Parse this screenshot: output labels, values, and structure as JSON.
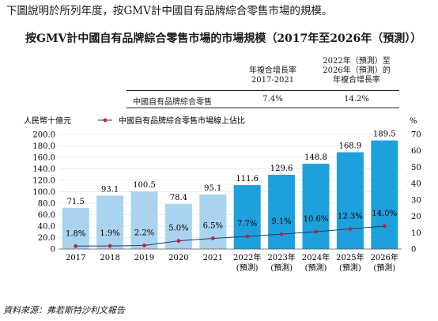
{
  "intro_text": "下圖說明於所列年度，按GMV計中國自有品牌綜合零售市場的規模。",
  "cagr_table": {
    "col1_header": [
      "年複合增長率",
      "2017-2021"
    ],
    "col2_header": [
      "2022年（預測）至",
      "2026年（預測）的",
      "年複合增長率"
    ],
    "row_label": "中國自有品牌綜合零售",
    "col1_value": "7.4%",
    "col2_value": "14.2%"
  },
  "source": "資料來源：弗若斯特沙利文報告",
  "colors": {
    "bar_historical": "#a9d3ef",
    "bar_forecast": "#1ea0dc",
    "line": "#1b3a6b",
    "marker": "#c81e3c"
  },
  "chart_data": {
    "type": "bar",
    "title": "按GMV計中國自有品牌綜合零售市場的市場規模（2017年至2026年（預測））",
    "ylabel": "人民幣十億元",
    "y2label": "%",
    "legend_label": "中國自有品牌綜合零售市場線上佔比",
    "categories": [
      [
        "2017"
      ],
      [
        "2018"
      ],
      [
        "2019"
      ],
      [
        "2020"
      ],
      [
        "2021"
      ],
      [
        "2022年",
        "(預測)"
      ],
      [
        "2023年",
        "(預測)"
      ],
      [
        "2024年",
        "(預測)"
      ],
      [
        "2025年",
        "(預測)"
      ],
      [
        "2026年",
        "(預測)"
      ]
    ],
    "forecast": [
      false,
      false,
      false,
      false,
      false,
      true,
      true,
      true,
      true,
      true
    ],
    "values": [
      71.5,
      93.1,
      100.5,
      78.4,
      95.1,
      111.6,
      129.6,
      148.8,
      168.9,
      189.5
    ],
    "value_labels": [
      "71.5",
      "93.1",
      "100.5",
      "78.4",
      "95.1",
      "111.6",
      "129.6",
      "148.8",
      "168.9",
      "189.5"
    ],
    "line_values": [
      1.8,
      1.9,
      2.2,
      5.0,
      6.5,
      7.7,
      9.1,
      10.6,
      12.3,
      14.0
    ],
    "line_labels": [
      "1.8%",
      "1.9%",
      "2.2%",
      "5.0%",
      "6.5%",
      "7.7%",
      "9.1%",
      "10.6%",
      "12.3%",
      "14.0%"
    ],
    "ylim": [
      0,
      200
    ],
    "yticks": [
      "0",
      "20.0",
      "40.0",
      "60.0",
      "80.0",
      "100.0",
      "120.0",
      "140.0",
      "160.0",
      "180.0",
      "200.0"
    ],
    "y2lim": [
      0,
      70
    ],
    "y2ticks": [
      "0",
      "10",
      "20",
      "30",
      "40",
      "50",
      "60",
      "70"
    ],
    "legend_position": "top-left"
  }
}
